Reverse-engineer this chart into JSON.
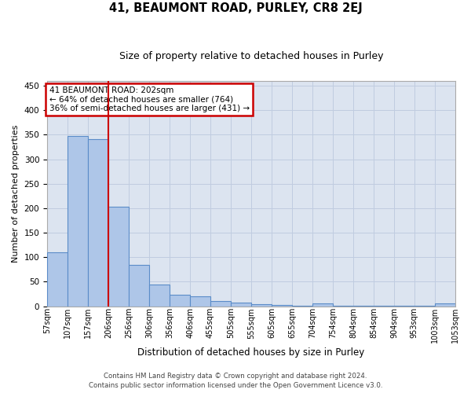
{
  "title_line1": "41, BEAUMONT ROAD, PURLEY, CR8 2EJ",
  "title_line2": "Size of property relative to detached houses in Purley",
  "xlabel": "Distribution of detached houses by size in Purley",
  "ylabel": "Number of detached properties",
  "annotation_line1": "41 BEAUMONT ROAD: 202sqm",
  "annotation_line2": "← 64% of detached houses are smaller (764)",
  "annotation_line3": "36% of semi-detached houses are larger (431) →",
  "bin_edges": [
    57,
    107,
    157,
    206,
    256,
    306,
    356,
    406,
    455,
    505,
    555,
    605,
    655,
    704,
    754,
    804,
    854,
    904,
    953,
    1003,
    1053
  ],
  "bin_labels": [
    "57sqm",
    "107sqm",
    "157sqm",
    "206sqm",
    "256sqm",
    "306sqm",
    "356sqm",
    "406sqm",
    "455sqm",
    "505sqm",
    "555sqm",
    "605sqm",
    "655sqm",
    "704sqm",
    "754sqm",
    "804sqm",
    "854sqm",
    "904sqm",
    "953sqm",
    "1003sqm",
    "1053sqm"
  ],
  "bar_heights": [
    110,
    347,
    341,
    203,
    84,
    45,
    24,
    20,
    10,
    7,
    4,
    2,
    1,
    6,
    1,
    1,
    1,
    1,
    1,
    6
  ],
  "bar_color": "#aec6e8",
  "bar_edge_color": "#5b8cc8",
  "vline_x": 206,
  "vline_color": "#cc0000",
  "ylim": [
    0,
    460
  ],
  "yticks": [
    0,
    50,
    100,
    150,
    200,
    250,
    300,
    350,
    400,
    450
  ],
  "grid_color": "#c0cce0",
  "bg_color": "#dce4f0",
  "annotation_box_edgecolor": "#cc0000",
  "footer_line1": "Contains HM Land Registry data © Crown copyright and database right 2024.",
  "footer_line2": "Contains public sector information licensed under the Open Government Licence v3.0.",
  "title1_fontsize": 10.5,
  "title2_fontsize": 9.0,
  "footer_fontsize": 6.2,
  "ylabel_fontsize": 8.0,
  "xlabel_fontsize": 8.5,
  "tick_fontsize": 7.0,
  "ann_fontsize": 7.5
}
